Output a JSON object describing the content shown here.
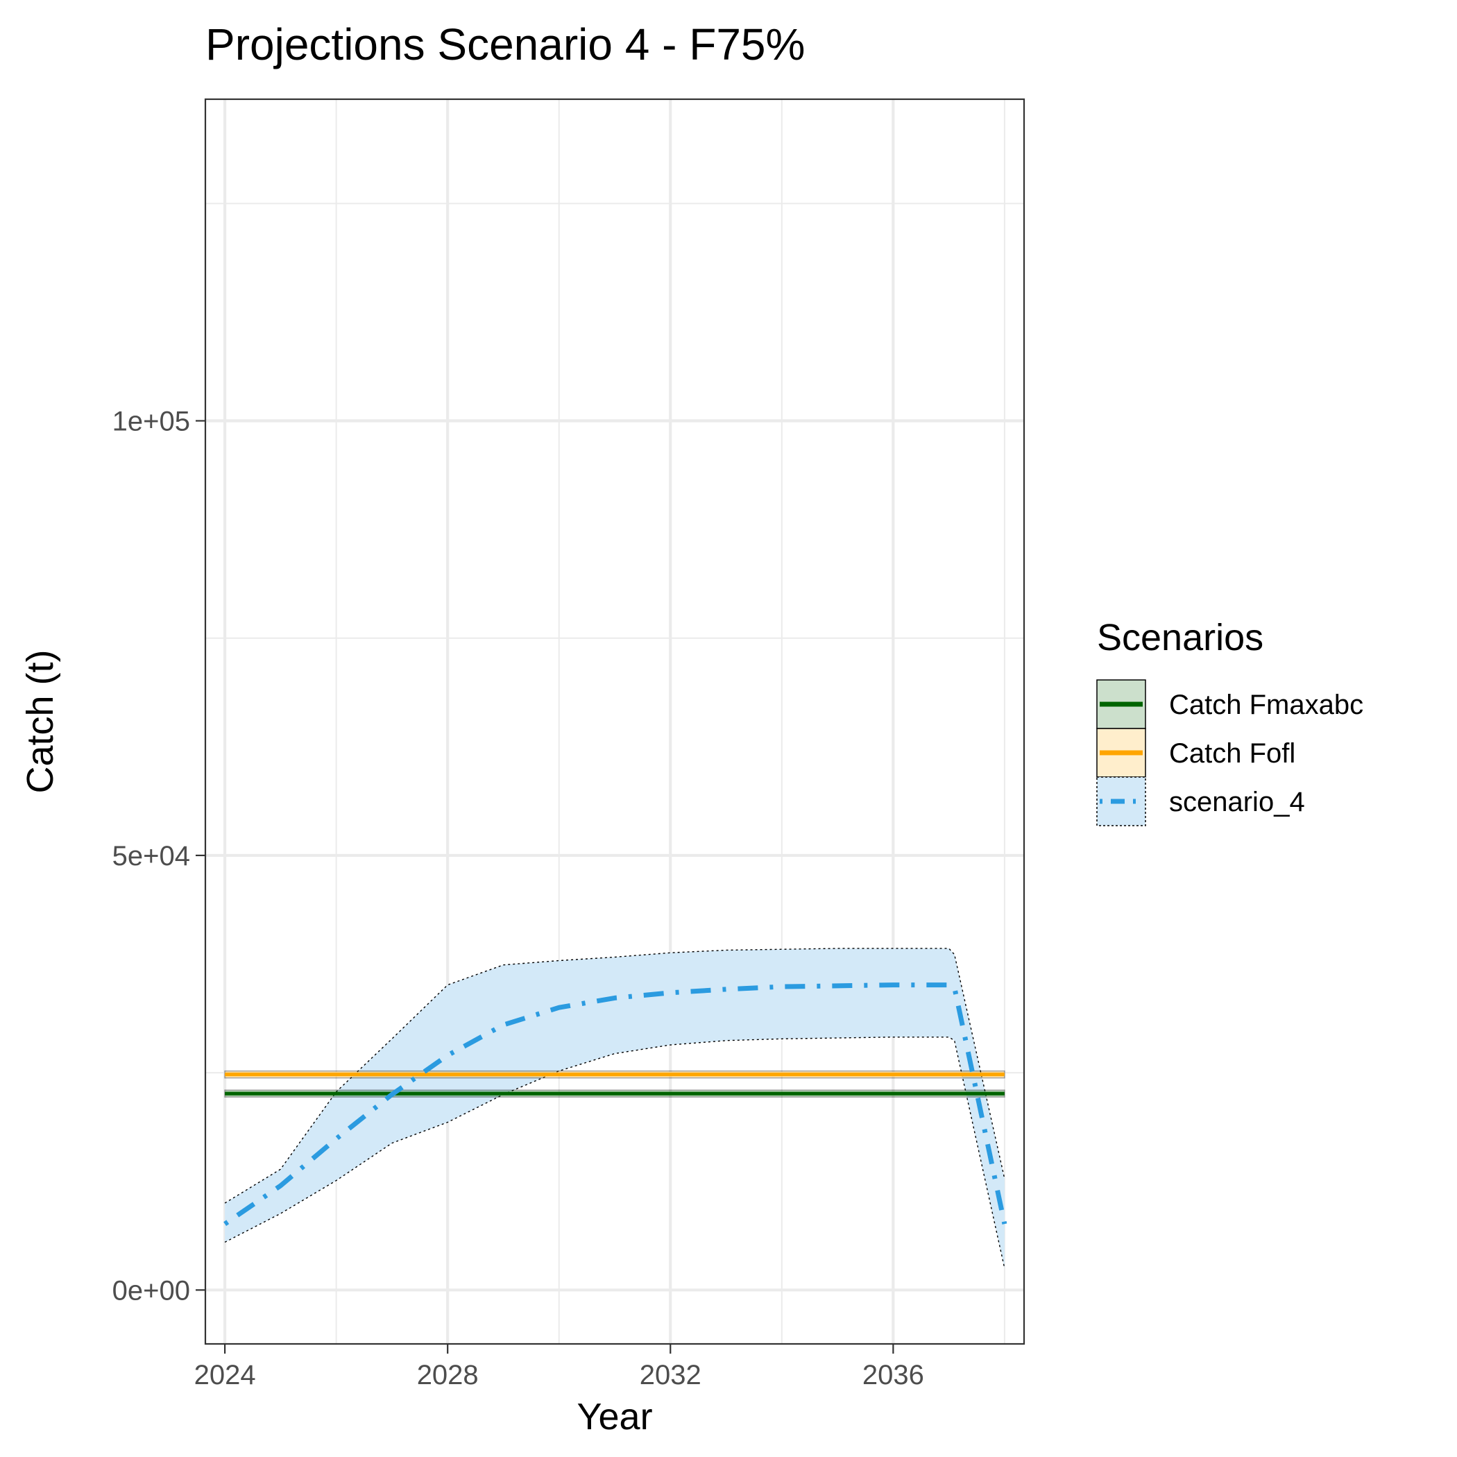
{
  "chart_data": {
    "type": "line",
    "title": "Projections Scenario 4 - F75%",
    "xlabel": "Year",
    "ylabel": "Catch (t)",
    "xlim": [
      2023.65,
      2038.35
    ],
    "ylim": [
      -6200,
      137000
    ],
    "x_ticks": [
      2024,
      2028,
      2032,
      2036
    ],
    "x_tick_labels": [
      "2024",
      "2028",
      "2032",
      "2036"
    ],
    "x_minor_ticks": [
      2026,
      2030,
      2034,
      2038
    ],
    "y_ticks": [
      0,
      50000,
      100000
    ],
    "y_tick_labels": [
      "0e+00",
      "5e+04",
      "1e+05"
    ],
    "y_minor_ticks": [
      25000,
      75000,
      125000
    ],
    "grid": true,
    "legend": {
      "title": "Scenarios",
      "position": "right",
      "entries": [
        {
          "label": "Catch Fmaxabc",
          "color": "#006400",
          "fill": "#cce0cc",
          "linetype": "solid"
        },
        {
          "label": "Catch Fofl",
          "color": "#ffa500",
          "fill": "#ffeecc",
          "linetype": "solid"
        },
        {
          "label": "scenario_4",
          "color": "#2b9be0",
          "fill": "#d3e9f8",
          "linetype": "dotdash"
        }
      ]
    },
    "series": [
      {
        "name": "Catch Fmaxabc",
        "type": "hline",
        "x_range": [
          2024,
          2038
        ],
        "value": 22600,
        "lower": 22200,
        "upper": 23000,
        "color": "#006400"
      },
      {
        "name": "Catch Fofl",
        "type": "hline",
        "x_range": [
          2024,
          2038
        ],
        "value": 24800,
        "lower": 24400,
        "upper": 25200,
        "color": "#ffa500"
      },
      {
        "name": "scenario_4",
        "type": "line_ribbon",
        "x": [
          2024,
          2025,
          2026,
          2027,
          2028,
          2029,
          2030,
          2031,
          2032,
          2033,
          2034,
          2035,
          2036,
          2037,
          2037.1,
          2038
        ],
        "values": [
          7600,
          12000,
          17400,
          22500,
          27000,
          30500,
          32500,
          33600,
          34200,
          34600,
          34900,
          35000,
          35100,
          35100,
          34800,
          7600
        ],
        "lower": [
          5500,
          8800,
          12600,
          16900,
          19300,
          22500,
          25200,
          27200,
          28200,
          28700,
          28900,
          29000,
          29100,
          29100,
          28700,
          2500
        ],
        "upper": [
          10000,
          13900,
          22800,
          28900,
          35100,
          37400,
          37900,
          38300,
          38800,
          39100,
          39200,
          39300,
          39300,
          39300,
          38600,
          12800
        ],
        "color": "#2b9be0",
        "fill": "#d3e9f8"
      }
    ]
  }
}
